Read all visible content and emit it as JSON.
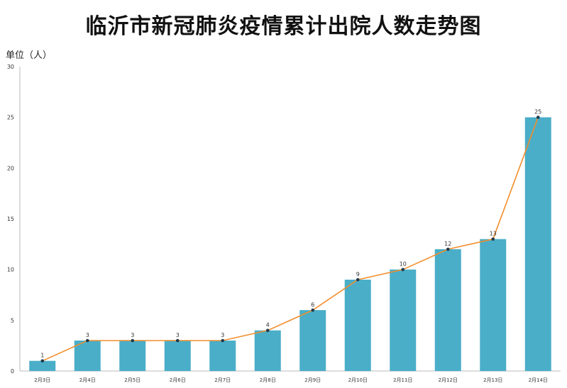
{
  "chart_data": {
    "type": "bar",
    "title": "临沂市新冠肺炎疫情累计出院人数走势图",
    "unit_label": "单位（人）",
    "categories": [
      "2月3日",
      "2月4日",
      "2月5日",
      "2月6日",
      "2月7日",
      "2月8日",
      "2月9日",
      "2月10日",
      "2月11日",
      "2月12日",
      "2月13日",
      "2月14日"
    ],
    "series": [
      {
        "type": "bar",
        "values": [
          1,
          3,
          3,
          3,
          3,
          4,
          6,
          9,
          10,
          12,
          13,
          25
        ],
        "color": "#4aaec8"
      },
      {
        "type": "line",
        "values": [
          1,
          3,
          3,
          3,
          3,
          4,
          6,
          9,
          10,
          12,
          13,
          25
        ],
        "color": "#f28e2b",
        "marker_color": "#1f3a4d"
      }
    ],
    "data_labels": [
      "1",
      "3",
      "3",
      "3",
      "3",
      "4",
      "6",
      "9",
      "10",
      "12",
      "13",
      "25"
    ],
    "yticks": [
      "0",
      "5",
      "10",
      "15",
      "20",
      "25",
      "30"
    ],
    "ylim": [
      0,
      30
    ],
    "grid": false,
    "legend": "none"
  }
}
